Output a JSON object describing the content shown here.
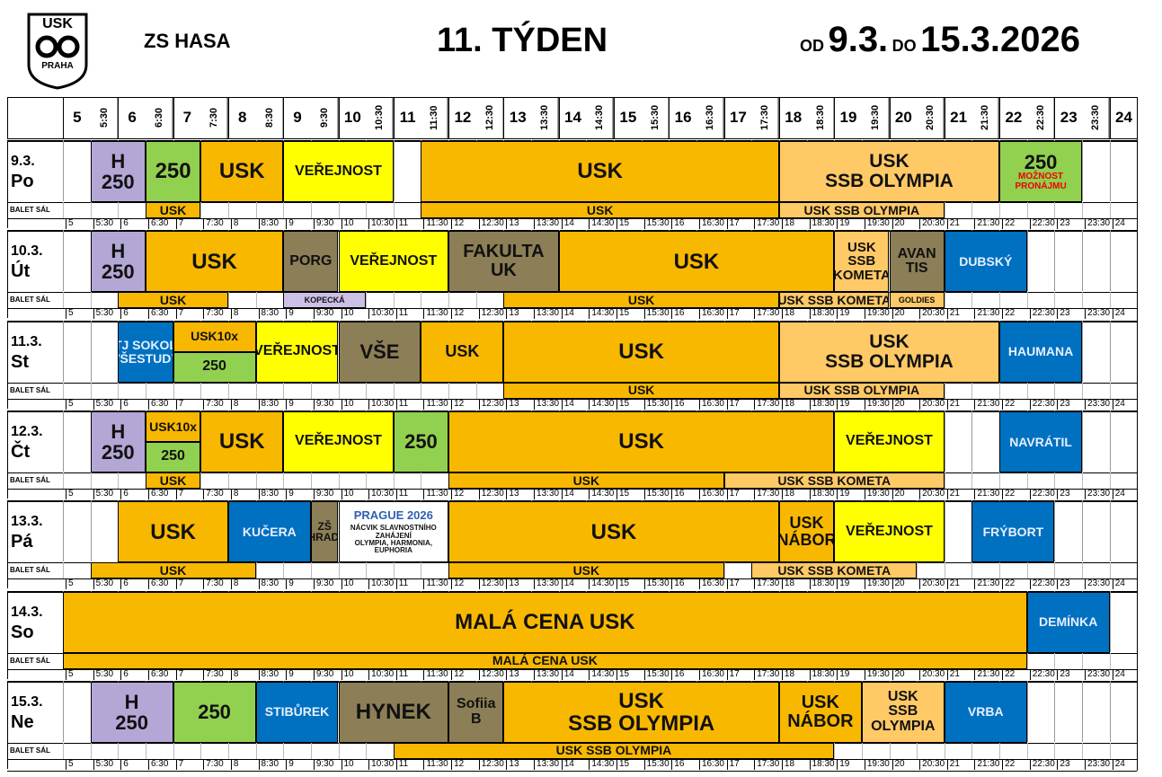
{
  "header": {
    "logo_top": "USK",
    "logo_bottom": "PRAHA",
    "rink": "ZS HASA",
    "week": "11. TÝDEN",
    "from_label": "OD",
    "from_date": "9.3.",
    "to_label": "DO",
    "to_date": "15.3.2026"
  },
  "hour_labels": [
    "5",
    "5:30",
    "6",
    "6:30",
    "7",
    "7:30",
    "8",
    "8:30",
    "9",
    "9:30",
    "10",
    "10:30",
    "11",
    "11:30",
    "12",
    "12:30",
    "13",
    "13:30",
    "14",
    "14:30",
    "15",
    "15:30",
    "16",
    "16:30",
    "17",
    "17:30",
    "18",
    "18:30",
    "19",
    "19:30",
    "20",
    "20:30",
    "21",
    "21:30",
    "22",
    "22:30",
    "23",
    "23:30",
    "24"
  ],
  "balet_label": "BALET SÁL",
  "colors": {
    "orange": "#f9b800",
    "light_orange": "#ffc966",
    "yellow": "#ffff00",
    "green": "#92d050",
    "purple": "#b4a7d6",
    "olive": "#8c7e56",
    "blue": "#0070c0",
    "lilac": "#ccc0e6",
    "white": "#ffffff"
  },
  "days": [
    {
      "date": "9.3.",
      "name": "Po",
      "ice": [
        {
          "from": "5:30",
          "to": "6:30",
          "label": "H\n250",
          "color": "purple",
          "size": 22
        },
        {
          "from": "6:30",
          "to": "7:30",
          "label": "250",
          "color": "green",
          "size": 24
        },
        {
          "from": "7:30",
          "to": "9",
          "label": "USK",
          "color": "orange",
          "size": 24
        },
        {
          "from": "9",
          "to": "11",
          "label": "VEŘEJNOST",
          "color": "yellow",
          "size": 16
        },
        {
          "from": "11:30",
          "to": "18",
          "label": "USK",
          "color": "orange",
          "size": 24
        },
        {
          "from": "18",
          "to": "22",
          "label": "USK\nSSB OLYMPIA",
          "color": "light_orange",
          "size": 21
        },
        {
          "from": "22",
          "to": "23:30",
          "label": "250",
          "sub": "MOŽNOST\nPRONÁJMU",
          "color": "green",
          "size": 22
        }
      ],
      "balet": [
        {
          "from": "6:30",
          "to": "7:30",
          "label": "USK",
          "color": "orange"
        },
        {
          "from": "11:30",
          "to": "18",
          "label": "USK",
          "color": "orange"
        },
        {
          "from": "18",
          "to": "21",
          "label": "USK SSB OLYMPIA",
          "color": "light_orange"
        }
      ]
    },
    {
      "date": "10.3.",
      "name": "Út",
      "ice": [
        {
          "from": "5:30",
          "to": "6:30",
          "label": "H\n250",
          "color": "purple",
          "size": 22
        },
        {
          "from": "6:30",
          "to": "9",
          "label": "USK",
          "color": "orange",
          "size": 24
        },
        {
          "from": "9",
          "to": "10",
          "label": "PORG",
          "color": "olive",
          "size": 16
        },
        {
          "from": "10",
          "to": "12",
          "label": "VEŘEJNOST",
          "color": "yellow",
          "size": 16
        },
        {
          "from": "12",
          "to": "14",
          "label": "FAKULTA\nUK",
          "color": "olive",
          "size": 20
        },
        {
          "from": "14",
          "to": "19",
          "label": "USK",
          "color": "orange",
          "size": 24
        },
        {
          "from": "19",
          "to": "20",
          "label": "USK\nSSB\nKOMETA",
          "color": "light_orange",
          "size": 15
        },
        {
          "from": "20",
          "to": "21",
          "label": "AVAN\nTIS",
          "color": "olive",
          "size": 16
        },
        {
          "from": "21",
          "to": "22:30",
          "label": "DUBSKÝ",
          "color": "blue",
          "size": 14
        }
      ],
      "balet": [
        {
          "from": "6",
          "to": "8",
          "label": "USK",
          "color": "orange"
        },
        {
          "from": "9",
          "to": "10:30",
          "label": "KOPECKÁ",
          "color": "lilac"
        },
        {
          "from": "13",
          "to": "18",
          "label": "USK",
          "color": "orange"
        },
        {
          "from": "18",
          "to": "20",
          "label": "USK SSB KOMETA",
          "color": "light_orange"
        },
        {
          "from": "20",
          "to": "21",
          "label": "GOLDIES",
          "color": "light_orange"
        }
      ]
    },
    {
      "date": "11.3.",
      "name": "St",
      "ice": [
        {
          "from": "6",
          "to": "7",
          "label": "TJ SOKOL\nVŠESTUDY",
          "color": "blue",
          "size": 14
        },
        {
          "from": "7",
          "to": "8:30",
          "label": "USK10x",
          "color": "orange",
          "size": 14,
          "half": "top"
        },
        {
          "from": "7",
          "to": "8:30",
          "label": "250",
          "color": "green",
          "size": 16,
          "half": "bottom"
        },
        {
          "from": "8:30",
          "to": "10",
          "label": "VEŘEJNOST",
          "color": "yellow",
          "size": 16
        },
        {
          "from": "10",
          "to": "11:30",
          "label": "VŠE",
          "color": "olive",
          "size": 22
        },
        {
          "from": "11:30",
          "to": "13",
          "label": "USK",
          "color": "orange",
          "size": 18
        },
        {
          "from": "13",
          "to": "18",
          "label": "USK",
          "color": "orange",
          "size": 24
        },
        {
          "from": "18",
          "to": "22",
          "label": "USK\nSSB OLYMPIA",
          "color": "light_orange",
          "size": 21
        },
        {
          "from": "22",
          "to": "23:30",
          "label": "HAUMANA",
          "color": "blue",
          "size": 14
        }
      ],
      "balet": [
        {
          "from": "13",
          "to": "18",
          "label": "USK",
          "color": "orange"
        },
        {
          "from": "18",
          "to": "21",
          "label": "USK SSB OLYMPIA",
          "color": "light_orange"
        }
      ]
    },
    {
      "date": "12.3.",
      "name": "Čt",
      "ice": [
        {
          "from": "5:30",
          "to": "6:30",
          "label": "H\n250",
          "color": "purple",
          "size": 22
        },
        {
          "from": "6:30",
          "to": "7:30",
          "label": "USK10x",
          "color": "orange",
          "size": 14,
          "half": "top"
        },
        {
          "from": "6:30",
          "to": "7:30",
          "label": "250",
          "color": "green",
          "size": 16,
          "half": "bottom"
        },
        {
          "from": "7:30",
          "to": "9",
          "label": "USK",
          "color": "orange",
          "size": 24
        },
        {
          "from": "9",
          "to": "11",
          "label": "VEŘEJNOST",
          "color": "yellow",
          "size": 16
        },
        {
          "from": "11",
          "to": "12",
          "label": "250",
          "color": "green",
          "size": 22
        },
        {
          "from": "12",
          "to": "19",
          "label": "USK",
          "color": "orange",
          "size": 24
        },
        {
          "from": "19",
          "to": "21",
          "label": "VEŘEJNOST",
          "color": "yellow",
          "size": 16
        },
        {
          "from": "22",
          "to": "23:30",
          "label": "NAVRÁTIL",
          "color": "blue",
          "size": 14
        }
      ],
      "balet": [
        {
          "from": "6:30",
          "to": "7:30",
          "label": "USK",
          "color": "orange"
        },
        {
          "from": "12",
          "to": "17",
          "label": "USK",
          "color": "orange"
        },
        {
          "from": "17",
          "to": "21",
          "label": "USK SSB KOMETA",
          "color": "light_orange"
        }
      ]
    },
    {
      "date": "13.3.",
      "name": "Pá",
      "ice": [
        {
          "from": "6",
          "to": "8",
          "label": "USK",
          "color": "orange",
          "size": 24
        },
        {
          "from": "8",
          "to": "9:30",
          "label": "KUČERA",
          "color": "blue",
          "size": 14
        },
        {
          "from": "9:30",
          "to": "10",
          "label": "ZŠ\nOHRADNÍ",
          "color": "olive",
          "size": 12
        },
        {
          "from": "10",
          "to": "12",
          "label": "PRAGUE 2026",
          "sub": "NÁCVIK SLAVNOSTNÍHO ZAHÁJENÍ\nOLYMPIA, HARMONIA, EUPHORIA",
          "color": "white",
          "size": 12,
          "logo": true
        },
        {
          "from": "12",
          "to": "18",
          "label": "USK",
          "color": "orange",
          "size": 24
        },
        {
          "from": "18",
          "to": "19",
          "label": "USK\nNÁBOR",
          "color": "orange",
          "size": 18
        },
        {
          "from": "19",
          "to": "21",
          "label": "VEŘEJNOST",
          "color": "yellow",
          "size": 16
        },
        {
          "from": "21:30",
          "to": "23",
          "label": "FRÝBORT",
          "color": "blue",
          "size": 14
        }
      ],
      "balet": [
        {
          "from": "5:30",
          "to": "8:30",
          "label": "USK",
          "color": "orange"
        },
        {
          "from": "12",
          "to": "17",
          "label": "USK",
          "color": "orange"
        },
        {
          "from": "17:30",
          "to": "20:30",
          "label": "USK SSB KOMETA",
          "color": "light_orange"
        }
      ]
    },
    {
      "date": "14.3.",
      "name": "So",
      "ice": [
        {
          "from": "5",
          "to": "22:30",
          "label": "MALÁ CENA USK",
          "color": "orange",
          "size": 24
        },
        {
          "from": "22:30",
          "to": "24",
          "label": "DEMÍNKA",
          "color": "blue",
          "size": 14
        }
      ],
      "balet": [
        {
          "from": "5",
          "to": "22:30",
          "label": "MALÁ CENA USK",
          "color": "orange"
        }
      ]
    },
    {
      "date": "15.3.",
      "name": "Ne",
      "ice": [
        {
          "from": "5:30",
          "to": "7",
          "label": "H\n250",
          "color": "purple",
          "size": 22
        },
        {
          "from": "7",
          "to": "8:30",
          "label": "250",
          "color": "green",
          "size": 22
        },
        {
          "from": "8:30",
          "to": "10",
          "label": "STIBŮREK",
          "color": "blue",
          "size": 14
        },
        {
          "from": "10",
          "to": "12",
          "label": "HYNEK",
          "color": "olive",
          "size": 24
        },
        {
          "from": "12",
          "to": "13",
          "label": "Sofiia\nB",
          "color": "olive",
          "size": 16
        },
        {
          "from": "13",
          "to": "18",
          "label": "USK\nSSB OLYMPIA",
          "color": "orange",
          "size": 24
        },
        {
          "from": "18",
          "to": "19:30",
          "label": "USK\nNÁBOR",
          "color": "orange",
          "size": 20
        },
        {
          "from": "19:30",
          "to": "21",
          "label": "USK\nSSB\nOLYMPIA",
          "color": "light_orange",
          "size": 16
        },
        {
          "from": "21",
          "to": "22:30",
          "label": "VRBA",
          "color": "blue",
          "size": 14
        }
      ],
      "balet": [
        {
          "from": "11",
          "to": "19",
          "label": "USK SSB OLYMPIA",
          "color": "orange"
        }
      ]
    }
  ]
}
